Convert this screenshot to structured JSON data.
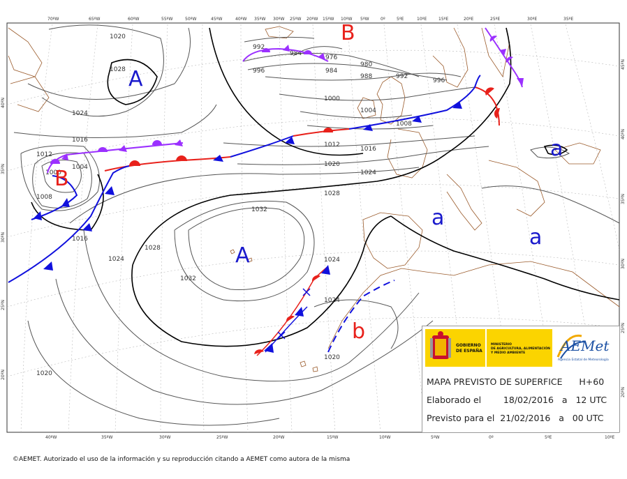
{
  "map": {
    "longitude_labels_top": [
      "70ºW",
      "65ºW",
      "60ºW",
      "55ºW",
      "50ºW",
      "45ºW",
      "40ºW",
      "35ºW",
      "30ºW",
      "25ºW",
      "20ºW",
      "15ºW",
      "10ºW",
      "5ºW",
      "0º",
      "5ºE",
      "10ºE",
      "15ºE",
      "20ºE",
      "25ºE",
      "30ºE",
      "35ºE"
    ],
    "longitude_labels_bottom": [
      "40ºW",
      "35ºW",
      "30ºW",
      "25ºW",
      "20ºW",
      "15ºW",
      "10ºW",
      "5ºW",
      "0º",
      "5ºE",
      "10ºE"
    ],
    "latitude_labels_left": [
      "40ºN",
      "35ºN",
      "30ºN",
      "25ºN",
      "20ºN"
    ],
    "latitude_labels_right": [
      "45ºN",
      "40ºN",
      "35ºN",
      "30ºN",
      "25ºN",
      "20ºN"
    ],
    "isobar_labels": [
      "1020",
      "1028",
      "1024",
      "1016",
      "1012",
      "1004",
      "1000",
      "1008",
      "1016",
      "1024",
      "992",
      "984",
      "976",
      "996",
      "984",
      "980",
      "988",
      "992",
      "996",
      "1000",
      "1004",
      "1008",
      "1012",
      "1016",
      "1020",
      "1024",
      "1028",
      "1032",
      "1028",
      "1032",
      "1024",
      "1024",
      "1020",
      "1020"
    ],
    "pressure_centers": [
      {
        "symbol": "A",
        "kind": "high",
        "color": "#1a1acc"
      },
      {
        "symbol": "B",
        "kind": "low",
        "color": "#e8211b"
      },
      {
        "symbol": "B",
        "kind": "low",
        "color": "#e8211b"
      },
      {
        "symbol": "A",
        "kind": "high",
        "color": "#1a1acc"
      },
      {
        "symbol": "a",
        "kind": "high",
        "color": "#1a1acc"
      },
      {
        "symbol": "a",
        "kind": "high",
        "color": "#1a1acc"
      },
      {
        "symbol": "a",
        "kind": "high",
        "color": "#1a1acc"
      },
      {
        "symbol": "b",
        "kind": "low",
        "color": "#e8211b"
      }
    ],
    "colors": {
      "cold_front": "#1010dd",
      "warm_front": "#e8211b",
      "occluded_front": "#9b30ff",
      "isobar": "#555555",
      "isobar_bold": "#000000",
      "coast": "#9a5a2a"
    }
  },
  "infobox": {
    "gob_line1": "GOBIERNO",
    "gob_line2": "DE ESPAÑA",
    "min_line1": "MINISTERIO",
    "min_line2": "DE AGRICULTURA, ALIMENTACIÓN",
    "min_line3": "Y MEDIO AMBIENTE",
    "aemet_logo": "AEMet",
    "aemet_sub": "Agencia Estatal de Meteorología",
    "title": "MAPA PREVISTO DE SUPERFICE      H+60",
    "elaborado": "Elaborado el        18/02/2016   a   12 UTC",
    "previsto": "Previsto para el  21/02/2016   a   00 UTC"
  },
  "footer": {
    "credit": "©AEMET. Autorizado el uso de la información y su reproducción citando a AEMET como autora de la misma"
  }
}
